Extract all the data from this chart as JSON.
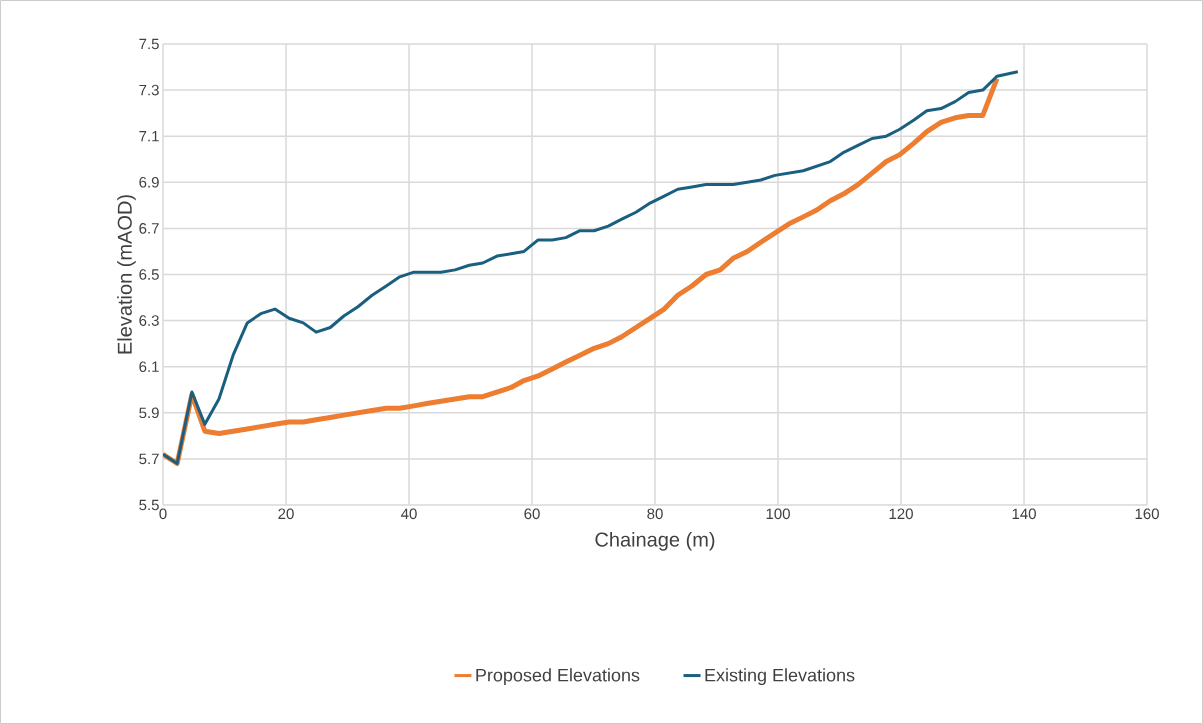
{
  "chart_data": {
    "type": "line",
    "xlabel": "Chainage (m)",
    "ylabel": "Elevation (mAOD)",
    "x": [
      0,
      2.3,
      4.7,
      6.8,
      9.1,
      11.4,
      13.7,
      15.9,
      18.2,
      20.5,
      22.8,
      24.9,
      27.2,
      29.4,
      31.7,
      34.0,
      36.3,
      38.5,
      40.8,
      42.9,
      45.2,
      47.5,
      49.8,
      52.0,
      54.3,
      56.6,
      58.7,
      61.0,
      63.3,
      65.5,
      67.8,
      70.1,
      72.4,
      74.6,
      76.9,
      79.2,
      81.5,
      83.7,
      86.0,
      88.3,
      90.6,
      92.7,
      95.0,
      97.2,
      99.5,
      101.8,
      104.1,
      106.3,
      108.5,
      110.7,
      113.0,
      115.3,
      117.6,
      119.8,
      122.1,
      124.2,
      126.5,
      128.8,
      131.0,
      133.3,
      135.6,
      139.0
    ],
    "series": [
      {
        "name": "Proposed Elevations",
        "color": "#ed7d31",
        "values": [
          5.72,
          5.68,
          5.98,
          5.82,
          5.81,
          5.82,
          5.83,
          5.84,
          5.85,
          5.86,
          5.86,
          5.87,
          5.88,
          5.89,
          5.9,
          5.91,
          5.92,
          5.92,
          5.93,
          5.94,
          5.95,
          5.96,
          5.97,
          5.97,
          5.99,
          6.01,
          6.04,
          6.06,
          6.09,
          6.12,
          6.15,
          6.18,
          6.2,
          6.23,
          6.27,
          6.31,
          6.35,
          6.41,
          6.45,
          6.5,
          6.52,
          6.57,
          6.6,
          6.64,
          6.68,
          6.72,
          6.75,
          6.78,
          6.82,
          6.85,
          6.89,
          6.94,
          6.99,
          7.02,
          7.07,
          7.12,
          7.16,
          7.18,
          7.19,
          7.19,
          7.35,
          null
        ]
      },
      {
        "name": "Existing Elevations",
        "color": "#1a5f80",
        "values": [
          5.72,
          5.68,
          5.99,
          5.85,
          5.96,
          6.15,
          6.29,
          6.33,
          6.35,
          6.31,
          6.29,
          6.25,
          6.27,
          6.32,
          6.36,
          6.41,
          6.45,
          6.49,
          6.51,
          6.51,
          6.51,
          6.52,
          6.54,
          6.55,
          6.58,
          6.59,
          6.6,
          6.65,
          6.65,
          6.66,
          6.69,
          6.69,
          6.71,
          6.74,
          6.77,
          6.81,
          6.84,
          6.87,
          6.88,
          6.89,
          6.89,
          6.89,
          6.9,
          6.91,
          6.93,
          6.94,
          6.95,
          6.97,
          6.99,
          7.03,
          7.06,
          7.09,
          7.1,
          7.13,
          7.17,
          7.21,
          7.22,
          7.25,
          7.29,
          7.3,
          7.36,
          7.38
        ]
      }
    ],
    "xlim": [
      0,
      160
    ],
    "xticks": [
      0,
      20,
      40,
      60,
      80,
      100,
      120,
      140,
      160
    ],
    "ylim": [
      5.5,
      7.5
    ],
    "yticks": [
      5.5,
      5.7,
      5.9,
      6.1,
      6.3,
      6.5,
      6.7,
      6.9,
      7.1,
      7.3,
      7.5
    ],
    "grid": true,
    "legend": "bottom",
    "marker": "none",
    "line_style": "solid"
  }
}
